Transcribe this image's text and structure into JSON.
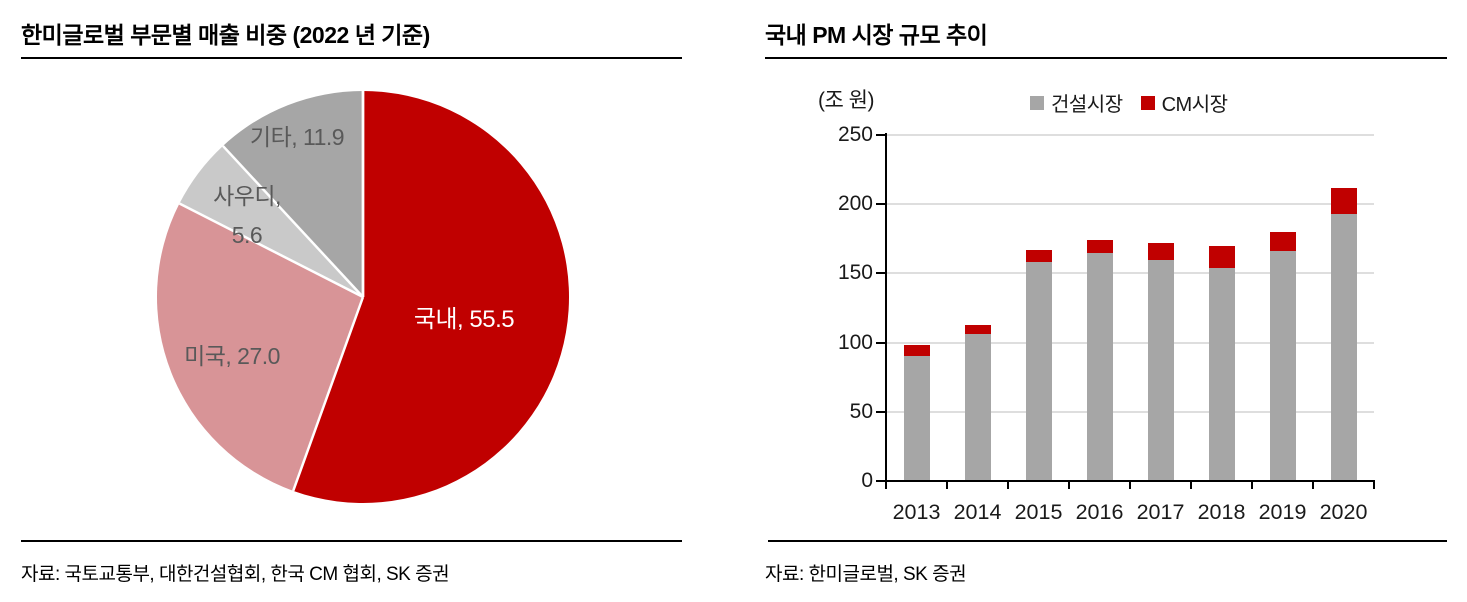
{
  "chart_data": [
    {
      "type": "pie",
      "title": "한미글로벌 부문별 매출 비중 (2022 년 기준)",
      "source": "자료: 국토교통부, 대한건설협회, 한국 CM 협회, SK 증권",
      "slices": [
        {
          "label": "국내",
          "value": 55.5,
          "color": "#C00000"
        },
        {
          "label": "미국",
          "value": 27.0,
          "color": "#D89497"
        },
        {
          "label": "사우디",
          "value": 5.6,
          "color": "#C9C9C9"
        },
        {
          "label": "기타",
          "value": 11.9,
          "color": "#A6A6A6"
        }
      ],
      "data_labels": {
        "domestic": "국내, 55.5",
        "usa": "미국, 27.0",
        "saudi_line1": "사우디,",
        "saudi_line2": "5.6",
        "etc": "기타, 11.9"
      }
    },
    {
      "type": "bar",
      "stacked": true,
      "title": "국내 PM 시장 규모 추이",
      "ylabel": "(조 원)",
      "categories": [
        "2013",
        "2014",
        "2015",
        "2016",
        "2017",
        "2018",
        "2019",
        "2020"
      ],
      "series": [
        {
          "name": "건설시장",
          "color": "#A6A6A6",
          "values": [
            90,
            106,
            158,
            165,
            160,
            154,
            166,
            193
          ]
        },
        {
          "name": "CM시장",
          "color": "#C00000",
          "values": [
            8,
            7,
            9,
            9,
            12,
            16,
            14,
            19
          ]
        }
      ],
      "totals": [
        98,
        113,
        167,
        174,
        172,
        170,
        180,
        212
      ],
      "ylim": [
        0,
        250
      ],
      "yticks": [
        0,
        50,
        100,
        150,
        200,
        250
      ],
      "grid": true,
      "legend_position": "top",
      "source": "자료: 한미글로벌, SK 증권"
    }
  ],
  "colors": {
    "accent_red": "#C00000",
    "pink": "#D89497",
    "light_gray": "#C9C9C9",
    "mid_gray": "#A6A6A6",
    "pie_label_gray": "#595959",
    "gridline": "#DEDEDE",
    "text": "#000000"
  }
}
